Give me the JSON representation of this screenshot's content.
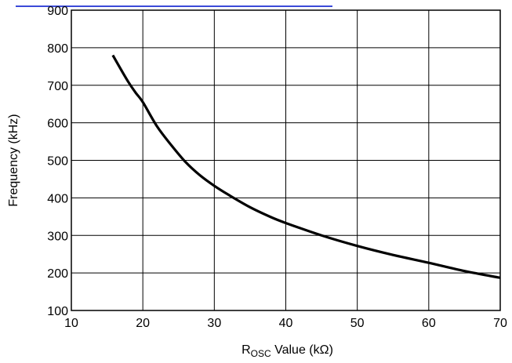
{
  "chart_data": {
    "type": "line",
    "title": "",
    "xlabel": {
      "main": "R",
      "sub": "OSC",
      "rest": " Value (kΩ)"
    },
    "ylabel": "Frequency (kHz)",
    "xlim": [
      10,
      70
    ],
    "ylim": [
      100,
      900
    ],
    "xticks": [
      "10",
      "20",
      "30",
      "40",
      "50",
      "60",
      "70"
    ],
    "yticks": [
      "100",
      "200",
      "300",
      "400",
      "500",
      "600",
      "700",
      "800",
      "900"
    ],
    "grid": true,
    "series": [
      {
        "color": "#000000",
        "x": [
          15.8,
          17,
          18,
          19,
          20,
          22,
          24,
          26,
          28,
          30,
          32,
          35,
          38,
          40,
          45,
          50,
          55,
          60,
          65,
          70
        ],
        "y": [
          780,
          740,
          708,
          680,
          655,
          590,
          540,
          495,
          460,
          432,
          408,
          375,
          348,
          333,
          300,
          272,
          248,
          227,
          205,
          187
        ]
      }
    ]
  },
  "colors": {
    "top_rule": "#3b4ad8",
    "grid": "#000000",
    "curve": "#000000"
  }
}
